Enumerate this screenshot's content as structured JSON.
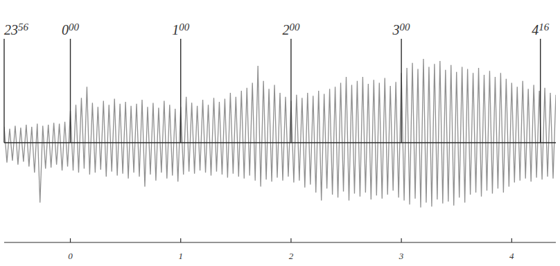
{
  "chart_data": {
    "type": "line",
    "color": "#8f8f8f",
    "x": [
      -0.6,
      -0.575,
      -0.55,
      -0.525,
      -0.5,
      -0.475,
      -0.45,
      -0.425,
      -0.4,
      -0.375,
      -0.35,
      -0.325,
      -0.3,
      -0.275,
      -0.25,
      -0.225,
      -0.2,
      -0.175,
      -0.15,
      -0.125,
      -0.1,
      -0.075,
      -0.05,
      -0.025,
      0,
      0.025,
      0.05,
      0.075,
      0.1,
      0.125,
      0.15,
      0.175,
      0.2,
      0.225,
      0.25,
      0.275,
      0.3,
      0.325,
      0.35,
      0.375,
      0.4,
      0.425,
      0.45,
      0.475,
      0.5,
      0.525,
      0.55,
      0.575,
      0.6,
      0.625,
      0.65,
      0.675,
      0.7,
      0.725,
      0.75,
      0.775,
      0.8,
      0.825,
      0.85,
      0.875,
      0.9,
      0.925,
      0.95,
      0.975,
      1.0,
      1.025,
      1.05,
      1.075,
      1.1,
      1.125,
      1.15,
      1.175,
      1.2,
      1.225,
      1.25,
      1.275,
      1.3,
      1.325,
      1.35,
      1.375,
      1.4,
      1.425,
      1.45,
      1.475,
      1.5,
      1.525,
      1.55,
      1.575,
      1.6,
      1.625,
      1.65,
      1.675,
      1.7,
      1.725,
      1.75,
      1.775,
      1.8,
      1.825,
      1.85,
      1.875,
      1.9,
      1.925,
      1.95,
      1.975,
      2.0,
      2.025,
      2.05,
      2.075,
      2.1,
      2.125,
      2.15,
      2.175,
      2.2,
      2.225,
      2.25,
      2.275,
      2.3,
      2.325,
      2.35,
      2.375,
      2.4,
      2.425,
      2.45,
      2.475,
      2.5,
      2.525,
      2.55,
      2.575,
      2.6,
      2.625,
      2.65,
      2.675,
      2.7,
      2.725,
      2.75,
      2.775,
      2.8,
      2.825,
      2.85,
      2.875,
      2.9,
      2.925,
      2.95,
      2.975,
      3.0,
      3.025,
      3.05,
      3.075,
      3.1,
      3.125,
      3.15,
      3.175,
      3.2,
      3.225,
      3.25,
      3.275,
      3.3,
      3.325,
      3.35,
      3.375,
      3.4,
      3.425,
      3.45,
      3.475,
      3.5,
      3.525,
      3.55,
      3.575,
      3.6,
      3.625,
      3.65,
      3.675,
      3.7,
      3.725,
      3.75,
      3.775,
      3.8,
      3.825,
      3.85,
      3.875,
      3.9,
      3.925,
      3.95,
      3.975,
      4.0,
      4.025,
      4.05,
      4.075,
      4.1,
      4.125,
      4.15,
      4.175,
      4.2,
      4.225,
      4.25,
      4.275,
      4.3,
      4.325,
      4.35,
      4.375,
      4.4
    ],
    "values": [
      1.6,
      -2.0,
      1.4,
      -1.8,
      1.7,
      -2.2,
      1.5,
      -1.9,
      1.8,
      -2.4,
      1.6,
      -3.0,
      1.9,
      -6.0,
      1.7,
      -2.6,
      1.8,
      -2.5,
      2.0,
      -2.2,
      1.9,
      -2.8,
      2.1,
      -2.4,
      3.2,
      -2.8,
      3.8,
      -3.0,
      4.5,
      -2.6,
      5.6,
      -3.2,
      4.0,
      -3.0,
      3.6,
      -2.7,
      4.2,
      -3.4,
      3.8,
      -2.9,
      4.4,
      -3.3,
      3.9,
      -3.1,
      4.1,
      -3.6,
      3.7,
      -3.0,
      3.9,
      -3.4,
      4.3,
      -4.4,
      3.6,
      -3.2,
      4.0,
      -3.8,
      3.5,
      -3.0,
      4.2,
      -3.6,
      3.8,
      -3.3,
      3.4,
      -3.9,
      3.6,
      -3.2,
      4.6,
      -2.9,
      4.0,
      -3.1,
      3.7,
      -2.8,
      4.3,
      -3.0,
      3.8,
      -3.3,
      4.5,
      -2.9,
      4.1,
      -3.2,
      4.4,
      -3.5,
      5.0,
      -3.1,
      4.6,
      -3.4,
      5.2,
      -3.6,
      5.5,
      -3.3,
      6.0,
      -3.8,
      7.7,
      -4.4,
      6.2,
      -3.7,
      5.4,
      -3.9,
      5.8,
      -3.5,
      5.0,
      -3.8,
      4.6,
      -3.4,
      4.2,
      -4.0,
      4.8,
      -3.8,
      4.5,
      -4.5,
      5.0,
      -4.2,
      4.7,
      -5.0,
      5.2,
      -5.8,
      4.9,
      -4.6,
      5.4,
      -5.2,
      5.6,
      -5.5,
      6.0,
      -4.9,
      6.6,
      -5.8,
      5.8,
      -5.1,
      6.2,
      -5.4,
      6.6,
      -5.0,
      5.9,
      -5.7,
      6.3,
      -5.3,
      6.0,
      -5.6,
      6.5,
      -5.2,
      5.7,
      -4.8,
      6.1,
      -5.5,
      7.0,
      -5.8,
      7.5,
      -6.2,
      8.0,
      -5.6,
      7.4,
      -6.5,
      8.4,
      -6.0,
      7.6,
      -6.4,
      7.9,
      -5.7,
      8.2,
      -6.1,
      7.3,
      -5.9,
      7.8,
      -6.3,
      7.1,
      -5.5,
      7.6,
      -6.0,
      7.4,
      -5.2,
      7.0,
      -5.0,
      7.5,
      -5.4,
      6.8,
      -4.8,
      7.2,
      -5.1,
      6.6,
      -4.6,
      7.0,
      -5.0,
      6.4,
      -4.4,
      6.0,
      -4.0,
      5.6,
      -3.8,
      6.2,
      -3.6,
      5.4,
      -3.9,
      5.8,
      -3.5,
      5.2,
      -3.7,
      5.5,
      -3.4,
      5.0,
      -3.6,
      4.8
    ],
    "xlim": [
      -0.6,
      4.4
    ],
    "xticks": [
      0,
      1,
      2,
      3,
      4
    ],
    "ylim": [
      -10,
      10
    ],
    "tick_labels": "x",
    "annotations": [
      {
        "x": -0.6,
        "text": "23 56"
      },
      {
        "x": 0,
        "text": "0 00"
      },
      {
        "x": 1,
        "text": "1 00"
      },
      {
        "x": 2,
        "text": "2 00"
      },
      {
        "x": 3,
        "text": "3 00"
      },
      {
        "x": 4.26,
        "text": "4 16"
      }
    ]
  }
}
